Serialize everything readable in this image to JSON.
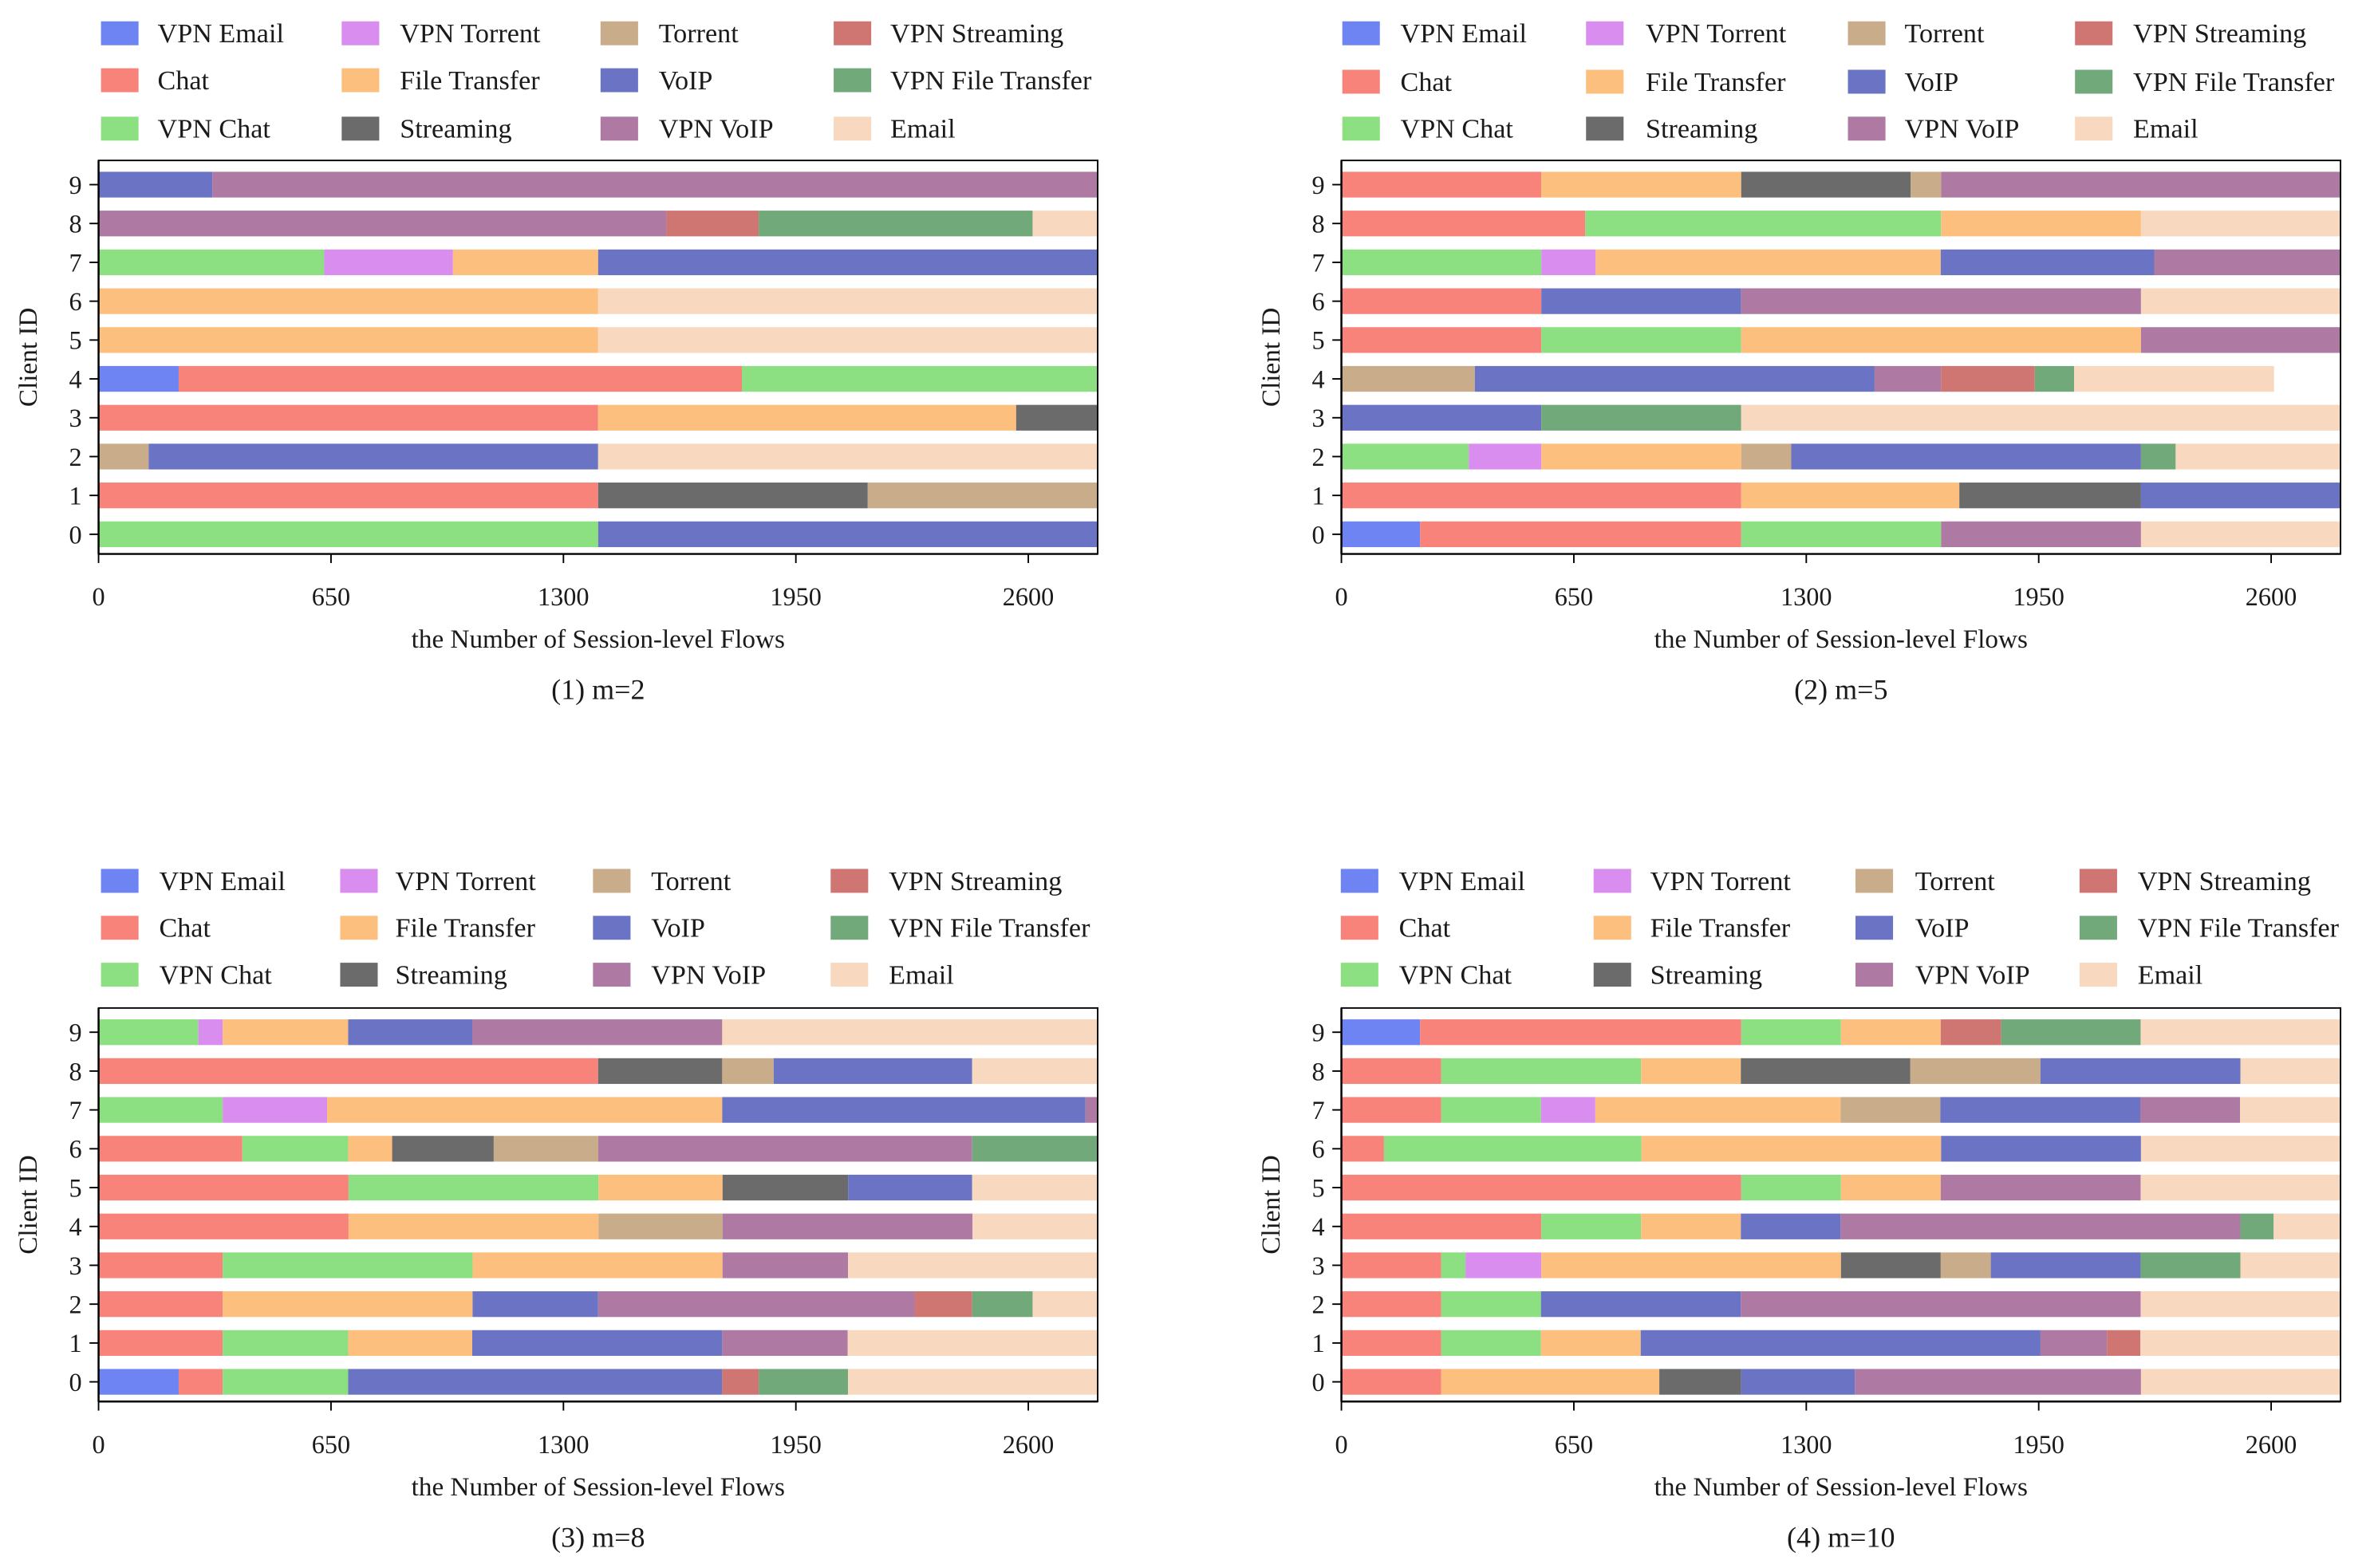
{
  "colors": {
    "VPN Email": "#6E84F3",
    "Chat": "#F7837B",
    "VPN Chat": "#8CE081",
    "VPN Torrent": "#D98DEF",
    "File Transfer": "#FCBF7E",
    "Streaming": "#6B6B6B",
    "Torrent": "#C9AC89",
    "VoIP": "#6B74C4",
    "VPN VoIP": "#AE7AA4",
    "VPN Streaming": "#CF7572",
    "VPN File Transfer": "#72A97B",
    "Email": "#F8D8BE"
  },
  "chart_data": [
    {
      "type": "bar",
      "horizontal": true,
      "stacked": true,
      "title": "(1) m=2",
      "xlabel": "the Number of Session-level Flows",
      "ylabel": "Client ID",
      "xlim": [
        0,
        2794
      ],
      "xticks": [
        0,
        650,
        1300,
        1950,
        2600
      ],
      "legend": "top",
      "categories": [
        "0",
        "1",
        "2",
        "3",
        "4",
        "5",
        "6",
        "7",
        "8",
        "9"
      ],
      "series": [
        {
          "name": "VPN Email",
          "values": [
            0,
            0,
            0,
            0,
            224,
            0,
            0,
            0,
            0,
            0
          ]
        },
        {
          "name": "Chat",
          "values": [
            0,
            1397,
            0,
            1397,
            1575,
            0,
            0,
            0,
            0,
            0
          ]
        },
        {
          "name": "VPN Chat",
          "values": [
            1397,
            0,
            0,
            0,
            995,
            0,
            0,
            631,
            0,
            0
          ]
        },
        {
          "name": "VPN Torrent",
          "values": [
            0,
            0,
            0,
            0,
            0,
            0,
            0,
            360,
            0,
            0
          ]
        },
        {
          "name": "File Transfer",
          "values": [
            0,
            0,
            0,
            1169,
            0,
            1397,
            1397,
            406,
            0,
            0
          ]
        },
        {
          "name": "Streaming",
          "values": [
            0,
            754,
            0,
            228,
            0,
            0,
            0,
            0,
            0,
            0
          ]
        },
        {
          "name": "Torrent",
          "values": [
            0,
            643,
            140,
            0,
            0,
            0,
            0,
            0,
            0,
            0
          ]
        },
        {
          "name": "VoIP",
          "values": [
            1397,
            0,
            1257,
            0,
            0,
            0,
            0,
            1397,
            0,
            318
          ]
        },
        {
          "name": "VPN VoIP",
          "values": [
            0,
            0,
            0,
            0,
            0,
            0,
            0,
            0,
            1588,
            2476
          ]
        },
        {
          "name": "VPN Streaming",
          "values": [
            0,
            0,
            0,
            0,
            0,
            0,
            0,
            0,
            258,
            0
          ]
        },
        {
          "name": "VPN File Transfer",
          "values": [
            0,
            0,
            0,
            0,
            0,
            0,
            0,
            0,
            766,
            0
          ]
        },
        {
          "name": "Email",
          "values": [
            0,
            0,
            1397,
            0,
            0,
            1397,
            1397,
            0,
            182,
            0
          ]
        }
      ]
    },
    {
      "type": "bar",
      "horizontal": true,
      "stacked": true,
      "title": "(2) m=5",
      "xlabel": "the Number of Session-level Flows",
      "ylabel": "Client ID",
      "xlim": [
        0,
        2794
      ],
      "xticks": [
        0,
        650,
        1300,
        1950,
        2600
      ],
      "legend": "top",
      "categories": [
        "0",
        "1",
        "2",
        "3",
        "4",
        "5",
        "6",
        "7",
        "8",
        "9"
      ],
      "series": [
        {
          "name": "VPN Email",
          "values": [
            220,
            0,
            0,
            0,
            0,
            0,
            0,
            0,
            0,
            0
          ]
        },
        {
          "name": "Chat",
          "values": [
            898,
            1118,
            0,
            0,
            0,
            559,
            559,
            0,
            682,
            559
          ]
        },
        {
          "name": "VPN Chat",
          "values": [
            559,
            0,
            356,
            0,
            0,
            559,
            0,
            559,
            995,
            0
          ]
        },
        {
          "name": "VPN Torrent",
          "values": [
            0,
            0,
            203,
            0,
            0,
            0,
            0,
            152,
            0,
            0
          ]
        },
        {
          "name": "File Transfer",
          "values": [
            0,
            610,
            559,
            0,
            0,
            1118,
            0,
            965,
            559,
            559
          ]
        },
        {
          "name": "Streaming",
          "values": [
            0,
            508,
            0,
            0,
            0,
            0,
            0,
            0,
            0,
            474
          ]
        },
        {
          "name": "Torrent",
          "values": [
            0,
            0,
            140,
            0,
            373,
            0,
            0,
            0,
            0,
            85
          ]
        },
        {
          "name": "VoIP",
          "values": [
            0,
            558,
            978,
            559,
            1118,
            0,
            559,
            597,
            0,
            0
          ]
        },
        {
          "name": "VPN VoIP",
          "values": [
            559,
            0,
            0,
            0,
            186,
            558,
            1118,
            521,
            0,
            1117
          ]
        },
        {
          "name": "VPN Streaming",
          "values": [
            0,
            0,
            0,
            0,
            262,
            0,
            0,
            0,
            0,
            0
          ]
        },
        {
          "name": "VPN File Transfer",
          "values": [
            0,
            0,
            97,
            559,
            110,
            0,
            0,
            0,
            0,
            0
          ]
        },
        {
          "name": "Email",
          "values": [
            558,
            0,
            461,
            1676,
            559,
            0,
            558,
            0,
            558,
            0
          ]
        }
      ]
    },
    {
      "type": "bar",
      "horizontal": true,
      "stacked": true,
      "title": "(3) m=8",
      "xlabel": "the Number of Session-level Flows",
      "ylabel": "Client ID",
      "xlim": [
        0,
        2794
      ],
      "xticks": [
        0,
        650,
        1300,
        1950,
        2600
      ],
      "legend": "top",
      "categories": [
        "0",
        "1",
        "2",
        "3",
        "4",
        "5",
        "6",
        "7",
        "8",
        "9"
      ],
      "series": [
        {
          "name": "VPN Email",
          "values": [
            224,
            0,
            0,
            0,
            0,
            0,
            0,
            0,
            0,
            0
          ]
        },
        {
          "name": "Chat",
          "values": [
            123,
            347,
            347,
            347,
            699,
            699,
            402,
            0,
            1397,
            0
          ]
        },
        {
          "name": "VPN Chat",
          "values": [
            351,
            351,
            0,
            699,
            0,
            699,
            296,
            347,
            0,
            279
          ]
        },
        {
          "name": "VPN Torrent",
          "values": [
            0,
            0,
            0,
            0,
            0,
            0,
            0,
            292,
            0,
            68
          ]
        },
        {
          "name": "File Transfer",
          "values": [
            0,
            347,
            699,
            699,
            699,
            347,
            123,
            1105,
            0,
            351
          ]
        },
        {
          "name": "Streaming",
          "values": [
            0,
            0,
            0,
            0,
            0,
            351,
            284,
            0,
            347,
            0
          ]
        },
        {
          "name": "Torrent",
          "values": [
            0,
            0,
            0,
            0,
            347,
            0,
            292,
            0,
            144,
            0
          ]
        },
        {
          "name": "VoIP",
          "values": [
            1046,
            699,
            351,
            0,
            0,
            347,
            0,
            1016,
            555,
            347
          ]
        },
        {
          "name": "VPN VoIP",
          "values": [
            0,
            351,
            885,
            351,
            699,
            0,
            1046,
            34,
            0,
            699
          ]
        },
        {
          "name": "VPN Streaming",
          "values": [
            102,
            0,
            161,
            0,
            0,
            0,
            0,
            0,
            0,
            0
          ]
        },
        {
          "name": "VPN File Transfer",
          "values": [
            250,
            0,
            169,
            0,
            0,
            0,
            351,
            0,
            0,
            0
          ]
        },
        {
          "name": "Email",
          "values": [
            698,
            699,
            182,
            698,
            350,
            351,
            0,
            0,
            351,
            1050
          ]
        }
      ]
    },
    {
      "type": "bar",
      "horizontal": true,
      "stacked": true,
      "title": "(4) m=10",
      "xlabel": "the Number of Session-level Flows",
      "ylabel": "Client ID",
      "xlim": [
        0,
        2794
      ],
      "xticks": [
        0,
        650,
        1300,
        1950,
        2600
      ],
      "legend": "top",
      "categories": [
        "0",
        "1",
        "2",
        "3",
        "4",
        "5",
        "6",
        "7",
        "8",
        "9"
      ],
      "series": [
        {
          "name": "VPN Email",
          "values": [
            0,
            0,
            0,
            0,
            0,
            0,
            0,
            0,
            0,
            220
          ]
        },
        {
          "name": "Chat",
          "values": [
            279,
            279,
            279,
            279,
            559,
            1118,
            119,
            279,
            279,
            898
          ]
        },
        {
          "name": "VPN Chat",
          "values": [
            0,
            279,
            279,
            68,
            279,
            279,
            720,
            279,
            559,
            279
          ]
        },
        {
          "name": "VPN Torrent",
          "values": [
            0,
            0,
            0,
            212,
            0,
            0,
            0,
            152,
            0,
            0
          ]
        },
        {
          "name": "File Transfer",
          "values": [
            610,
            279,
            0,
            838,
            279,
            279,
            838,
            686,
            279,
            279
          ]
        },
        {
          "name": "Streaming",
          "values": [
            229,
            0,
            0,
            279,
            0,
            0,
            0,
            0,
            474,
            0
          ]
        },
        {
          "name": "Torrent",
          "values": [
            0,
            0,
            0,
            140,
            0,
            0,
            0,
            279,
            364,
            0
          ]
        },
        {
          "name": "VoIP",
          "values": [
            318,
            1118,
            559,
            419,
            279,
            0,
            559,
            559,
            559,
            0
          ]
        },
        {
          "name": "VPN VoIP",
          "values": [
            800,
            186,
            1118,
            0,
            1118,
            559,
            0,
            279,
            0,
            0
          ]
        },
        {
          "name": "VPN Streaming",
          "values": [
            0,
            93,
            0,
            0,
            0,
            0,
            0,
            0,
            0,
            169
          ]
        },
        {
          "name": "VPN File Transfer",
          "values": [
            0,
            0,
            0,
            279,
            93,
            0,
            0,
            0,
            0,
            390
          ]
        },
        {
          "name": "Email",
          "values": [
            558,
            560,
            559,
            280,
            187,
            559,
            558,
            281,
            280,
            559
          ]
        }
      ]
    }
  ]
}
